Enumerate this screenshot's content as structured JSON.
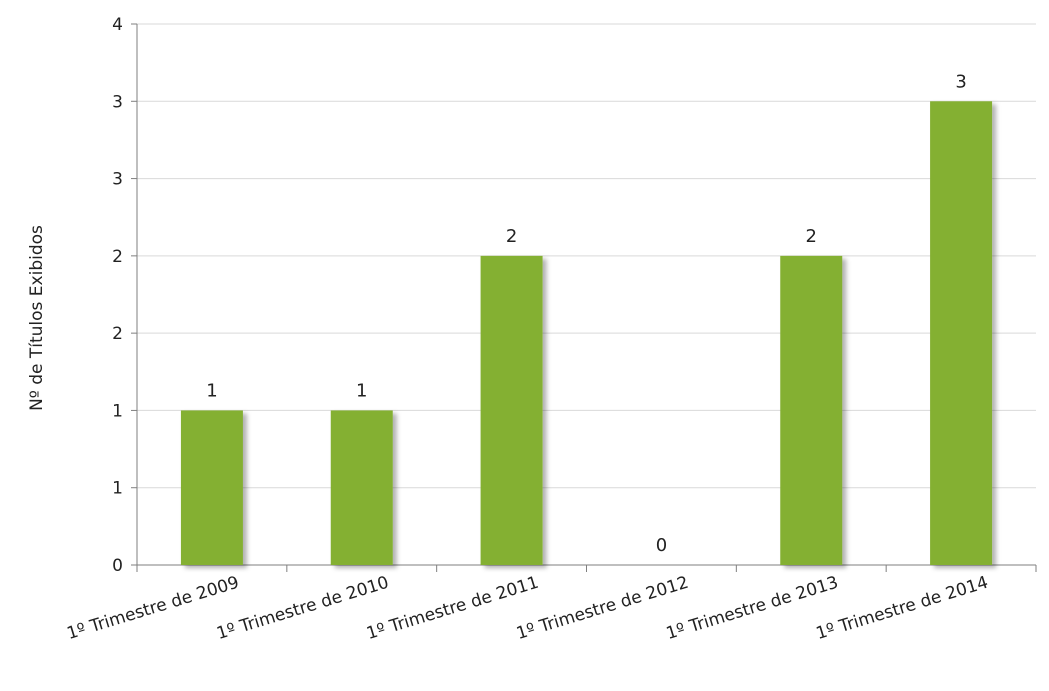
{
  "chart_data": {
    "type": "bar",
    "title": "",
    "xlabel": "",
    "ylabel": "Nº de Títulos Exibidos",
    "categories": [
      "1º Trimestre de 2009",
      "1º Trimestre de 2010",
      "1º Trimestre de 2011",
      "1º Trimestre de 2012",
      "1º Trimestre de 2013",
      "1º Trimestre de 2014"
    ],
    "values": [
      1,
      1,
      2,
      0,
      2,
      3
    ],
    "data_labels": [
      "1",
      "1",
      "2",
      "0",
      "2",
      "3"
    ],
    "y_ticks": [
      {
        "value": 0,
        "label": "0"
      },
      {
        "value": 0.5,
        "label": "1"
      },
      {
        "value": 1,
        "label": "1"
      },
      {
        "value": 1.5,
        "label": "2"
      },
      {
        "value": 2,
        "label": "2"
      },
      {
        "value": 2.5,
        "label": "3"
      },
      {
        "value": 3,
        "label": "3"
      },
      {
        "value": 3.5,
        "label": "4"
      }
    ],
    "ylim": [
      0,
      3.5
    ],
    "grid": true,
    "colors": {
      "bar": "#84b032",
      "grid": "#d9d9d9",
      "axis": "#7f7f7f"
    }
  }
}
